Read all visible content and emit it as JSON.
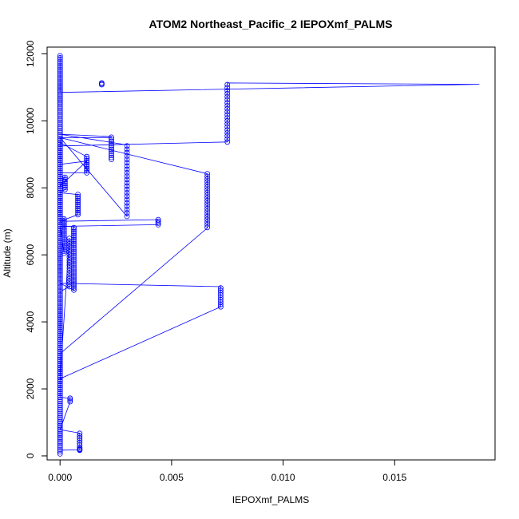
{
  "chart_data": {
    "type": "scatter",
    "title": "ATOM2 Northeast_Pacific_2 IEPOXmf_PALMS",
    "xlabel": "IEPOXmf_PALMS",
    "ylabel": "Altitude (m)",
    "xlim": [
      -0.00058,
      0.0195
    ],
    "ylim": [
      -120,
      12200
    ],
    "xticks": [
      0,
      0.005,
      0.01,
      0.015
    ],
    "xtick_labels": [
      "0.000",
      "0.005",
      "0.010",
      "0.015"
    ],
    "yticks": [
      0,
      2000,
      4000,
      6000,
      8000,
      10000,
      12000
    ],
    "ytick_labels": [
      "0",
      "2000",
      "4000",
      "6000",
      "8000",
      "10000",
      "12000"
    ],
    "grid": false,
    "series_color": "#0000ff",
    "marker": "open-circle",
    "clusters": [
      {
        "x": 0.0,
        "y_min": 60,
        "y_max": 11970,
        "step": 60
      },
      {
        "x": 0.00187,
        "y_min": 11080,
        "y_max": 11130,
        "step": 25
      },
      {
        "x": 0.0075,
        "y_min": 9370,
        "y_max": 11130,
        "step": 90
      },
      {
        "x": 0.0023,
        "y_min": 8850,
        "y_max": 9530,
        "step": 60
      },
      {
        "x": 0.003,
        "y_min": 7150,
        "y_max": 9280,
        "step": 100
      },
      {
        "x": 0.0012,
        "y_min": 8450,
        "y_max": 8930,
        "step": 60
      },
      {
        "x": 0.0066,
        "y_min": 6820,
        "y_max": 8420,
        "step": 80
      },
      {
        "x": 0.0008,
        "y_min": 7200,
        "y_max": 7800,
        "step": 60
      },
      {
        "x": 0.00022,
        "y_min": 7950,
        "y_max": 8350,
        "step": 60
      },
      {
        "x": 0.0044,
        "y_min": 6900,
        "y_max": 7050,
        "step": 50
      },
      {
        "x": 0.00018,
        "y_min": 6050,
        "y_max": 7100,
        "step": 60
      },
      {
        "x": 0.00062,
        "y_min": 4950,
        "y_max": 6850,
        "step": 60
      },
      {
        "x": 0.0072,
        "y_min": 4450,
        "y_max": 5050,
        "step": 70
      },
      {
        "x": 0.00042,
        "y_min": 5050,
        "y_max": 6500,
        "step": 80
      },
      {
        "x": 0.00045,
        "y_min": 1620,
        "y_max": 1720,
        "step": 50
      },
      {
        "x": 0.00088,
        "y_min": 180,
        "y_max": 680,
        "step": 70
      },
      {
        "x": 0.00088,
        "y_min": 170,
        "y_max": 210,
        "step": 20
      }
    ],
    "path": [
      [
        0.0,
        11970
      ],
      [
        0.0,
        10850
      ],
      [
        0.0188,
        11090
      ],
      [
        0.0075,
        11130
      ],
      [
        0.0075,
        9370
      ],
      [
        0.0,
        9250
      ],
      [
        0.0,
        9500
      ],
      [
        0.0023,
        9500
      ],
      [
        0.0023,
        9530
      ],
      [
        0.0,
        9600
      ],
      [
        0.003,
        9280
      ],
      [
        0.003,
        7150
      ],
      [
        0.0,
        9500
      ],
      [
        0.0066,
        8420
      ],
      [
        0.0066,
        6800
      ],
      [
        0.0,
        3050
      ],
      [
        0.0,
        9350
      ],
      [
        0.0012,
        8930
      ],
      [
        0.0012,
        8450
      ],
      [
        0.0,
        8450
      ],
      [
        0.0,
        8700
      ],
      [
        0.0012,
        8800
      ],
      [
        0.0,
        8050
      ],
      [
        0.00022,
        8350
      ],
      [
        0.00022,
        7950
      ],
      [
        0.0,
        7850
      ],
      [
        0.0008,
        7800
      ],
      [
        0.0008,
        7200
      ],
      [
        0.0,
        7000
      ],
      [
        0.0044,
        7050
      ],
      [
        0.0,
        7000
      ],
      [
        0.00018,
        7100
      ],
      [
        0.00018,
        6050
      ],
      [
        0.0,
        6850
      ],
      [
        0.0044,
        6900
      ],
      [
        0.0,
        6850
      ],
      [
        0.00062,
        6850
      ],
      [
        0.00062,
        4950
      ],
      [
        0.0,
        5150
      ],
      [
        0.0072,
        5050
      ],
      [
        0.0072,
        4450
      ],
      [
        0.0,
        2300
      ],
      [
        0.0,
        4900
      ],
      [
        0.00042,
        5050
      ],
      [
        0.00042,
        6500
      ],
      [
        0.0,
        2300
      ],
      [
        0.0,
        1750
      ],
      [
        0.00045,
        1720
      ],
      [
        0.00045,
        1620
      ],
      [
        0.0,
        780
      ],
      [
        0.00088,
        680
      ],
      [
        0.00088,
        180
      ],
      [
        0.0,
        170
      ]
    ]
  }
}
